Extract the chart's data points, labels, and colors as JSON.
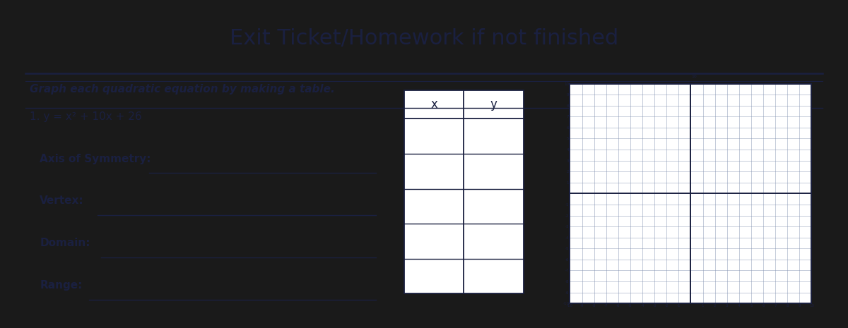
{
  "title": "Exit Ticket/Homework if not finished",
  "subtitle": "Graph each quadratic equation by making a table.",
  "problem": "1. y = x² + 10x + 26",
  "labels": {
    "axis_of_symmetry": "Axis of Symmetry:",
    "vertex": "Vertex:",
    "domain": "Domain:",
    "range": "Range:"
  },
  "table_headers": [
    "x",
    "y"
  ],
  "table_rows": 5,
  "bg_color": "#1a1a1a",
  "paper_color": "#e8e2d4",
  "text_color": "#1a2040",
  "grid_color": "#8899bb",
  "axis_color": "#1a2040",
  "title_fontsize": 22,
  "subtitle_fontsize": 11,
  "problem_fontsize": 11,
  "label_fontsize": 11
}
